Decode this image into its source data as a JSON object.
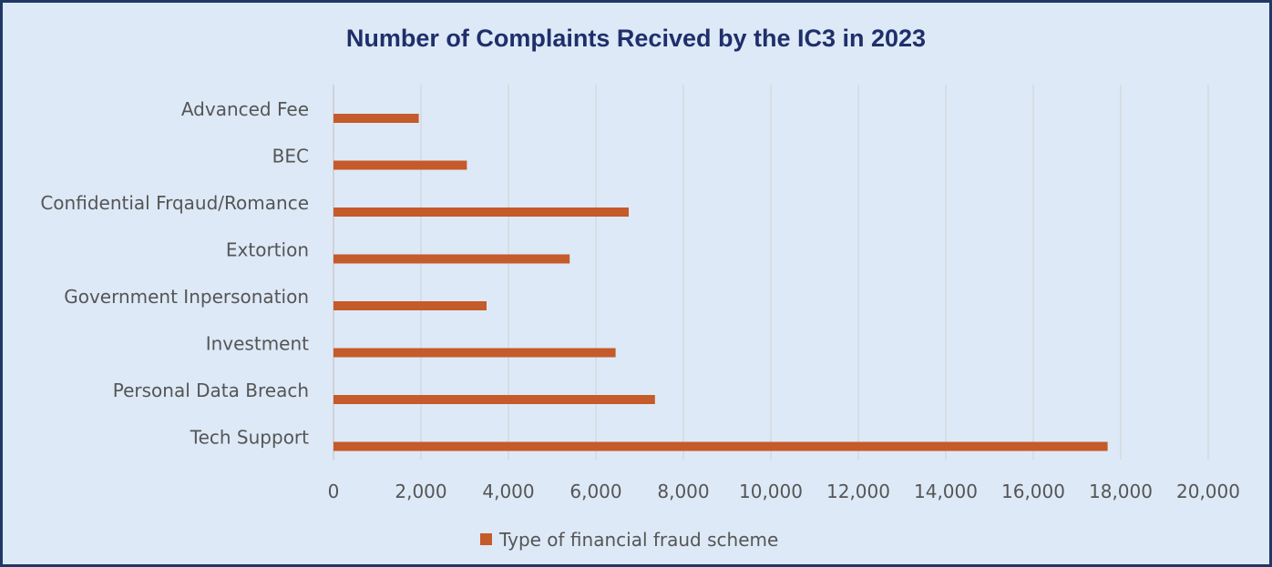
{
  "chart_data": {
    "type": "bar",
    "orientation": "horizontal",
    "title": "Number of Complaints Recived by the IC3 in 2023",
    "categories": [
      "Advanced Fee",
      "BEC",
      "Confidential Frqaud/Romance",
      "Extortion",
      "Government Inpersonation",
      "Investment",
      "Personal Data Breach",
      "Tech Support"
    ],
    "series": [
      {
        "name": "Type of financial fraud scheme",
        "color": "#c55a2a",
        "values": [
          1950,
          3050,
          6750,
          5400,
          3500,
          6450,
          7350,
          17700
        ]
      }
    ],
    "xlim": [
      0,
      20000
    ],
    "xticks": [
      "0",
      "2,000",
      "4,000",
      "6,000",
      "8,000",
      "10,000",
      "12,000",
      "14,000",
      "16,000",
      "18,000",
      "20,000"
    ],
    "xtick_values": [
      0,
      2000,
      4000,
      6000,
      8000,
      10000,
      12000,
      14000,
      16000,
      18000,
      20000
    ],
    "grid": true,
    "legend_position": "bottom",
    "background": "#dde9f6",
    "border_color": "#203864"
  }
}
